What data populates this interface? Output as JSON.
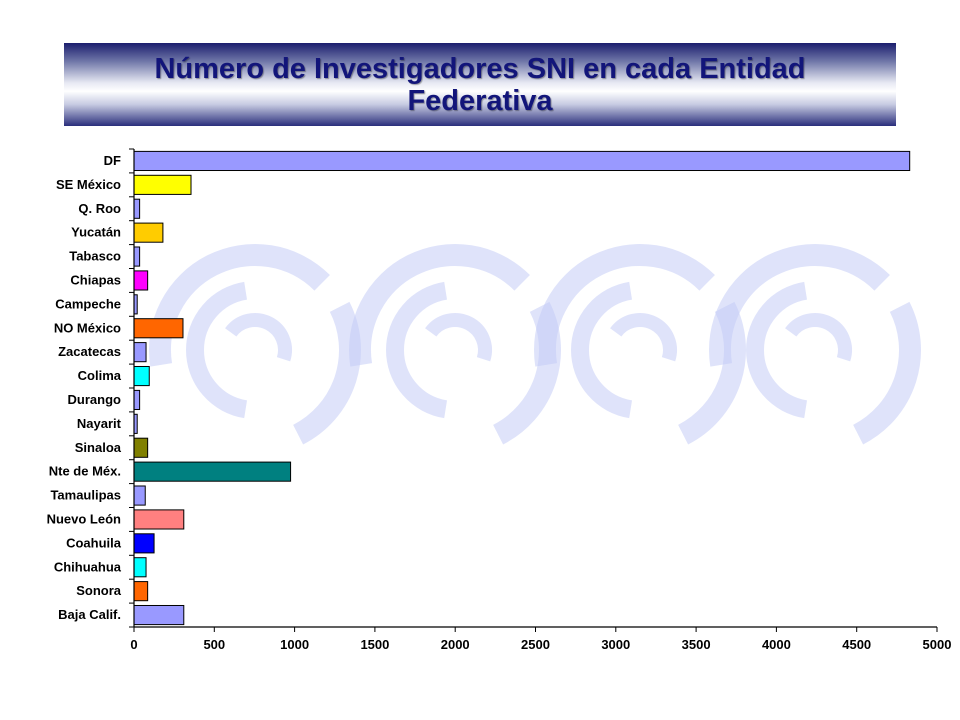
{
  "title": "Número de Investigadores SNI en cada Entidad Federativa",
  "chart_data": {
    "type": "bar",
    "orientation": "horizontal",
    "categories": [
      "DF",
      "SE México",
      "Q. Roo",
      "Yucatán",
      "Tabasco",
      "Chiapas",
      "Campeche",
      "NO México",
      "Zacatecas",
      "Colima",
      "Durango",
      "Nayarit",
      "Sinaloa",
      "Nte de Méx.",
      "Tamaulipas",
      "Nuevo León",
      "Coahuila",
      "Chihuahua",
      "Sonora",
      "Baja Calif."
    ],
    "values": [
      4830,
      355,
      35,
      180,
      35,
      85,
      20,
      305,
      75,
      95,
      35,
      20,
      85,
      975,
      70,
      310,
      125,
      75,
      85,
      310
    ],
    "colors": [
      "#9999ff",
      "#ffff00",
      "#9999ff",
      "#ffcc00",
      "#9999ff",
      "#ff00ff",
      "#9999ff",
      "#ff6600",
      "#9999ff",
      "#00ffff",
      "#9999ff",
      "#9999ff",
      "#808000",
      "#008080",
      "#9999ff",
      "#ff8080",
      "#0000ff",
      "#00ffff",
      "#ff6600",
      "#9999ff"
    ],
    "xlim": [
      0,
      5000
    ],
    "xticks": [
      0,
      500,
      1000,
      1500,
      2000,
      2500,
      3000,
      3500,
      4000,
      4500,
      5000
    ],
    "grid": false,
    "legend": "none",
    "xlabel": "",
    "ylabel": ""
  }
}
